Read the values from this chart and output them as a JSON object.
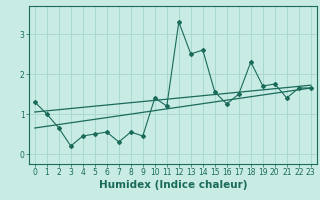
{
  "xlabel": "Humidex (Indice chaleur)",
  "ylabel": "",
  "bg_color": "#c8ebe4",
  "grid_color": "#a8d8ce",
  "line_color": "#1a6b5a",
  "x_data": [
    0,
    1,
    2,
    3,
    4,
    5,
    6,
    7,
    8,
    9,
    10,
    11,
    12,
    13,
    14,
    15,
    16,
    17,
    18,
    19,
    20,
    21,
    22,
    23
  ],
  "y_scatter": [
    1.3,
    1.0,
    0.65,
    0.2,
    0.45,
    0.5,
    0.55,
    0.3,
    0.55,
    0.45,
    1.4,
    1.2,
    3.3,
    2.5,
    2.6,
    1.55,
    1.25,
    1.5,
    2.3,
    1.7,
    1.75,
    1.4,
    1.65,
    1.65
  ],
  "trend1_x": [
    0,
    23
  ],
  "trend1_y": [
    0.65,
    1.65
  ],
  "trend2_x": [
    0,
    23
  ],
  "trend2_y": [
    1.05,
    1.72
  ],
  "xlim": [
    -0.5,
    23.5
  ],
  "ylim": [
    -0.25,
    3.7
  ],
  "xticks": [
    0,
    1,
    2,
    3,
    4,
    5,
    6,
    7,
    8,
    9,
    10,
    11,
    12,
    13,
    14,
    15,
    16,
    17,
    18,
    19,
    20,
    21,
    22,
    23
  ],
  "yticks": [
    0,
    1,
    2,
    3
  ],
  "tick_fontsize": 5.5,
  "xlabel_fontsize": 7.5
}
